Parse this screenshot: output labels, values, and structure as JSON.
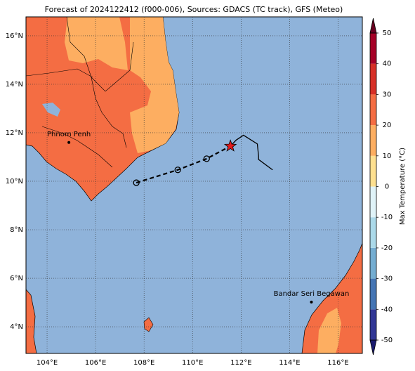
{
  "map": {
    "title": "Forecast of 2024122412 (f000-006), Sources: GDACS (TC track), GFS (Meteo)",
    "xlim": [
      103.13,
      117.0
    ],
    "ylim": [
      2.9,
      16.78
    ],
    "xticks": [
      {
        "value": 104,
        "label": "104°E"
      },
      {
        "value": 106,
        "label": "106°E"
      },
      {
        "value": 108,
        "label": "108°E"
      },
      {
        "value": 110,
        "label": "110°E"
      },
      {
        "value": 112,
        "label": "112°E"
      },
      {
        "value": 114,
        "label": "114°E"
      },
      {
        "value": 116,
        "label": "116°E"
      }
    ],
    "yticks": [
      {
        "value": 4,
        "label": "4°N"
      },
      {
        "value": 6,
        "label": "6°N"
      },
      {
        "value": 8,
        "label": "8°N"
      },
      {
        "value": 10,
        "label": "10°N"
      },
      {
        "value": 12,
        "label": "12°N"
      },
      {
        "value": 14,
        "label": "14°N"
      },
      {
        "value": 16,
        "label": "16°N"
      }
    ],
    "cities": [
      {
        "name": "Phnom Penh",
        "lon": 104.9,
        "lat": 11.6
      },
      {
        "name": "Bandar Seri Begawan",
        "lon": 114.9,
        "lat": 5.02
      }
    ],
    "forecast": [
      [
        107.68,
        9.94
      ],
      [
        109.39,
        10.47
      ],
      [
        110.58,
        10.93
      ]
    ],
    "position": [
      111.56,
      11.45
    ],
    "history": [
      [
        111.56,
        11.45
      ],
      [
        111.8,
        11.7
      ],
      [
        112.1,
        11.9
      ],
      [
        112.67,
        11.54
      ],
      [
        112.72,
        11.05
      ],
      [
        112.72,
        10.9
      ],
      [
        113.3,
        10.47
      ]
    ]
  },
  "colorbar": {
    "label": "Max Temperature (°C)",
    "lim": [
      -50,
      50
    ],
    "ticks": [
      -50,
      -40,
      -30,
      -20,
      -10,
      0,
      10,
      20,
      30,
      40,
      50
    ],
    "colors": [
      "#313695",
      "#4575b4",
      "#74add1",
      "#abd9e9",
      "#e0f3f8",
      "#fee090",
      "#fdae61",
      "#f46d43",
      "#d73027",
      "#a50026"
    ]
  }
}
